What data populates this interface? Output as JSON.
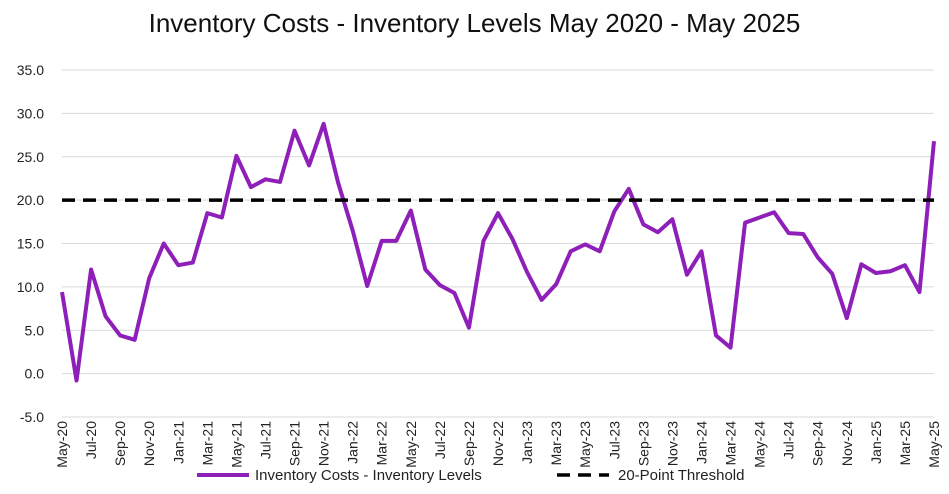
{
  "chart_data": {
    "type": "line",
    "title": "Inventory Costs - Inventory Levels May 2020 - May 2025",
    "xlabel": "",
    "ylabel": "",
    "ylim": [
      -5,
      35
    ],
    "yticks": [
      "35.0",
      "30.0",
      "25.0",
      "20.0",
      "15.0",
      "10.0",
      "5.0",
      "0.0",
      "-5.0"
    ],
    "ytick_values": [
      35,
      30,
      25,
      20,
      15,
      10,
      5,
      0,
      -5
    ],
    "x": [
      "May-20",
      "Jun-20",
      "Jul-20",
      "Aug-20",
      "Sep-20",
      "Oct-20",
      "Nov-20",
      "Dec-20",
      "Jan-21",
      "Feb-21",
      "Mar-21",
      "Apr-21",
      "May-21",
      "Jun-21",
      "Jul-21",
      "Aug-21",
      "Sep-21",
      "Oct-21",
      "Nov-21",
      "Dec-21",
      "Jan-22",
      "Feb-22",
      "Mar-22",
      "Apr-22",
      "May-22",
      "Jun-22",
      "Jul-22",
      "Aug-22",
      "Sep-22",
      "Oct-22",
      "Nov-22",
      "Dec-22",
      "Jan-23",
      "Feb-23",
      "Mar-23",
      "Apr-23",
      "May-23",
      "Jun-23",
      "Jul-23",
      "Aug-23",
      "Sep-23",
      "Oct-23",
      "Nov-23",
      "Dec-23",
      "Jan-24",
      "Feb-24",
      "Mar-24",
      "Apr-24",
      "May-24",
      "Jun-24",
      "Jul-24",
      "Aug-24",
      "Sep-24",
      "Oct-24",
      "Nov-24",
      "Dec-24",
      "Jan-25",
      "Feb-25",
      "Mar-25",
      "Apr-25",
      "May-25"
    ],
    "xtick_labels": [
      "May-20",
      "Jul-20",
      "Sep-20",
      "Nov-20",
      "Jan-21",
      "Mar-21",
      "May-21",
      "Jul-21",
      "Sep-21",
      "Nov-21",
      "Jan-22",
      "Mar-22",
      "May-22",
      "Jul-22",
      "Sep-22",
      "Nov-22",
      "Jan-23",
      "Mar-23",
      "May-23",
      "Jul-23",
      "Sep-23",
      "Nov-23",
      "Jan-24",
      "Mar-24",
      "May-24",
      "Jul-24",
      "Sep-24",
      "Nov-24",
      "Jan-25",
      "Mar-25",
      "May-25"
    ],
    "series": [
      {
        "name": "Inventory Costs - Inventory Levels",
        "color": "#8e1fb8",
        "style": "solid",
        "values": [
          9.4,
          -0.8,
          12.0,
          6.6,
          4.4,
          3.9,
          11.0,
          15.0,
          12.5,
          12.8,
          18.5,
          18.0,
          25.1,
          21.5,
          22.4,
          22.1,
          28.0,
          24.0,
          28.8,
          22.0,
          16.5,
          10.1,
          15.3,
          15.3,
          18.8,
          12.0,
          10.2,
          9.3,
          5.3,
          15.3,
          18.5,
          15.5,
          11.7,
          8.5,
          10.3,
          14.1,
          14.9,
          14.1,
          18.7,
          21.3,
          17.2,
          16.3,
          17.8,
          11.4,
          14.1,
          4.4,
          3.0,
          17.4,
          18.0,
          18.6,
          16.2,
          16.1,
          13.4,
          11.5,
          6.4,
          12.6,
          11.6,
          11.8,
          12.5,
          9.4,
          26.8
        ]
      },
      {
        "name": "20-Point Threshold",
        "color": "#000000",
        "style": "dashed",
        "values": [
          20,
          20,
          20,
          20,
          20,
          20,
          20,
          20,
          20,
          20,
          20,
          20,
          20,
          20,
          20,
          20,
          20,
          20,
          20,
          20,
          20,
          20,
          20,
          20,
          20,
          20,
          20,
          20,
          20,
          20,
          20,
          20,
          20,
          20,
          20,
          20,
          20,
          20,
          20,
          20,
          20,
          20,
          20,
          20,
          20,
          20,
          20,
          20,
          20,
          20,
          20,
          20,
          20,
          20,
          20,
          20,
          20,
          20,
          20,
          20,
          20
        ]
      }
    ],
    "grid": true,
    "legend_position": "bottom-center"
  }
}
